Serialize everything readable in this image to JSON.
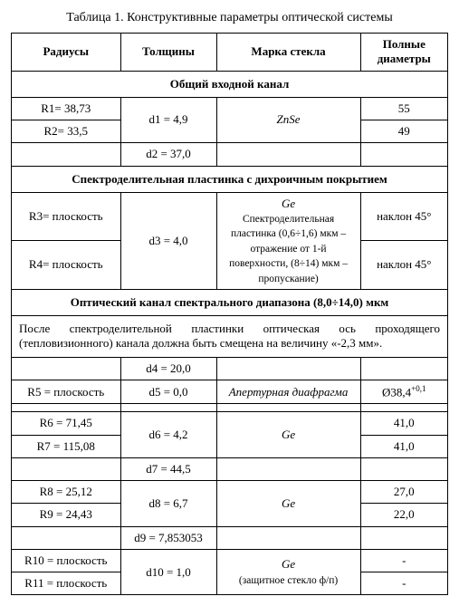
{
  "caption": "Таблица 1. Конструктивные параметры оптической системы",
  "headers": {
    "radii": "Радиусы",
    "thick": "Толщины",
    "glass": "Марка стекла",
    "diam": "Полные диаметры"
  },
  "sec1": "Общий входной канал",
  "r1": "R1= 38,73",
  "r2": "R2= 33,5",
  "d1": "d1 = 4,9",
  "g1": "ZnSe",
  "dia1a": "55",
  "dia1b": "49",
  "d2": "d2 = 37,0",
  "sec2": "Спектроделительная пластинка с дихроичным покрытием",
  "r3": "R3= плоскость",
  "r4": "R4= плоскость",
  "d3": "d3 = 4,0",
  "g3a": "Ge",
  "g3b": "Спектроделительная пластинка (0,6÷1,6) мкм – отражение от 1-й поверхности, (8÷14) мкм – пропускание)",
  "dia3a": "наклон 45°",
  "dia3b": "наклон 45°",
  "sec3": "Оптический канал спектрального диапазона (8,0÷14,0) мкм",
  "note": "После спектроделительной пластинки оптическая ось проходящего (тепловизионного) канала должна быть смещена на величину «-2,3 мм».",
  "d4": "d4 = 20,0",
  "r5": "R5 = плоскость",
  "d5": "d5 = 0,0",
  "g5": "Апертурная диафрагма",
  "dia5_main": "Ø38,4",
  "dia5_sup": "+0,1",
  "r6": "R6 = 71,45",
  "r7": "R7 = 115,08",
  "d6": "d6 = 4,2",
  "g6": "Ge",
  "dia6a": "41,0",
  "dia6b": "41,0",
  "d7": "d7 = 44,5",
  "r8": "R8 = 25,12",
  "r9": "R9 = 24,43",
  "d8": "d8 = 6,7",
  "g8": "Ge",
  "dia8a": "27,0",
  "dia8b": "22,0",
  "d9": "d9 = 7,853053",
  "r10": "R10 = плоскость",
  "r11": "R11 = плоскость",
  "d10": "d10 = 1,0",
  "g10a": "Ge",
  "g10b": "(защитное стекло ф/п)",
  "dia10a": "-",
  "dia10b": "-"
}
